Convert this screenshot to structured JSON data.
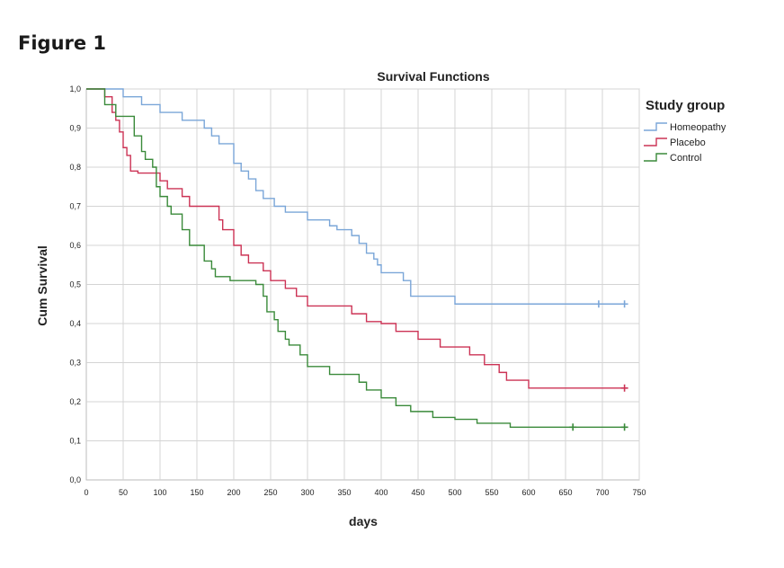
{
  "figure_label": "Figure 1",
  "chart_data": {
    "type": "line",
    "step": true,
    "title": "Survival Functions",
    "xlabel": "days",
    "ylabel": "Cum Survival",
    "xlim": [
      0,
      750
    ],
    "ylim": [
      0,
      1.0
    ],
    "x_ticks": [
      "0",
      "50",
      "100",
      "150",
      "200",
      "250",
      "300",
      "350",
      "400",
      "450",
      "500",
      "550",
      "600",
      "650",
      "700",
      "750"
    ],
    "y_ticks": [
      "0,0",
      "0,1",
      "0,2",
      "0,3",
      "0,4",
      "0,5",
      "0,6",
      "0,7",
      "0,8",
      "0,9",
      "1,0"
    ],
    "grid": true,
    "legend": {
      "title": "Study group",
      "position": "right"
    },
    "series": [
      {
        "name": "Homeopathy",
        "color": "#7aa6d8",
        "points": [
          [
            0,
            1.0
          ],
          [
            50,
            0.98
          ],
          [
            75,
            0.96
          ],
          [
            100,
            0.94
          ],
          [
            130,
            0.92
          ],
          [
            160,
            0.9
          ],
          [
            170,
            0.88
          ],
          [
            180,
            0.86
          ],
          [
            200,
            0.81
          ],
          [
            210,
            0.79
          ],
          [
            220,
            0.77
          ],
          [
            230,
            0.74
          ],
          [
            240,
            0.72
          ],
          [
            255,
            0.7
          ],
          [
            270,
            0.685
          ],
          [
            300,
            0.665
          ],
          [
            330,
            0.65
          ],
          [
            340,
            0.64
          ],
          [
            360,
            0.625
          ],
          [
            370,
            0.605
          ],
          [
            380,
            0.58
          ],
          [
            390,
            0.565
          ],
          [
            395,
            0.55
          ],
          [
            400,
            0.53
          ],
          [
            430,
            0.51
          ],
          [
            440,
            0.47
          ],
          [
            500,
            0.45
          ],
          [
            730,
            0.45
          ]
        ],
        "censored": [
          [
            695,
            0.45
          ],
          [
            730,
            0.45
          ]
        ]
      },
      {
        "name": "Placebo",
        "color": "#cc3355",
        "points": [
          [
            0,
            1.0
          ],
          [
            25,
            0.98
          ],
          [
            35,
            0.94
          ],
          [
            40,
            0.92
          ],
          [
            45,
            0.89
          ],
          [
            50,
            0.85
          ],
          [
            55,
            0.83
          ],
          [
            60,
            0.79
          ],
          [
            70,
            0.785
          ],
          [
            100,
            0.765
          ],
          [
            110,
            0.745
          ],
          [
            130,
            0.725
          ],
          [
            140,
            0.7
          ],
          [
            180,
            0.665
          ],
          [
            185,
            0.64
          ],
          [
            200,
            0.6
          ],
          [
            210,
            0.575
          ],
          [
            220,
            0.555
          ],
          [
            240,
            0.535
          ],
          [
            250,
            0.51
          ],
          [
            270,
            0.49
          ],
          [
            285,
            0.47
          ],
          [
            300,
            0.445
          ],
          [
            360,
            0.425
          ],
          [
            380,
            0.405
          ],
          [
            400,
            0.4
          ],
          [
            420,
            0.38
          ],
          [
            450,
            0.36
          ],
          [
            480,
            0.34
          ],
          [
            520,
            0.32
          ],
          [
            540,
            0.295
          ],
          [
            560,
            0.275
          ],
          [
            570,
            0.255
          ],
          [
            600,
            0.235
          ],
          [
            730,
            0.235
          ]
        ],
        "censored": [
          [
            730,
            0.235
          ]
        ]
      },
      {
        "name": "Control",
        "color": "#3a8a3a",
        "points": [
          [
            0,
            1.0
          ],
          [
            25,
            0.96
          ],
          [
            40,
            0.93
          ],
          [
            65,
            0.88
          ],
          [
            75,
            0.84
          ],
          [
            80,
            0.82
          ],
          [
            90,
            0.8
          ],
          [
            95,
            0.75
          ],
          [
            100,
            0.725
          ],
          [
            110,
            0.7
          ],
          [
            115,
            0.68
          ],
          [
            130,
            0.64
          ],
          [
            140,
            0.6
          ],
          [
            160,
            0.56
          ],
          [
            170,
            0.54
          ],
          [
            175,
            0.52
          ],
          [
            195,
            0.51
          ],
          [
            230,
            0.5
          ],
          [
            240,
            0.47
          ],
          [
            245,
            0.43
          ],
          [
            255,
            0.41
          ],
          [
            260,
            0.38
          ],
          [
            270,
            0.36
          ],
          [
            275,
            0.345
          ],
          [
            290,
            0.32
          ],
          [
            300,
            0.29
          ],
          [
            330,
            0.27
          ],
          [
            370,
            0.25
          ],
          [
            380,
            0.23
          ],
          [
            400,
            0.21
          ],
          [
            420,
            0.19
          ],
          [
            440,
            0.175
          ],
          [
            470,
            0.16
          ],
          [
            500,
            0.155
          ],
          [
            530,
            0.145
          ],
          [
            575,
            0.135
          ],
          [
            730,
            0.135
          ]
        ],
        "censored": [
          [
            660,
            0.135
          ],
          [
            730,
            0.135
          ]
        ]
      }
    ]
  }
}
